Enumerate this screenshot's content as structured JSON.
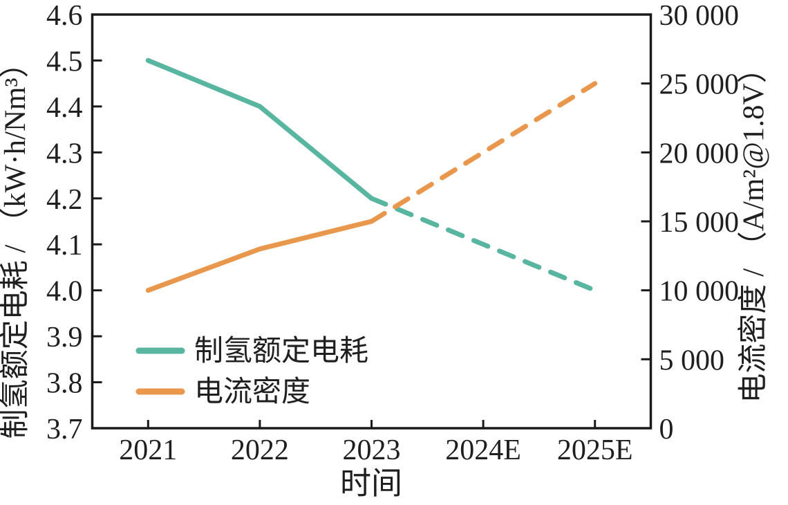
{
  "figure": {
    "background": "#ffffff",
    "text_color": "#1f1f1f"
  },
  "chart_data": {
    "type": "line",
    "title": "",
    "xlabel": "时间",
    "ylabel_left": "制氢额定电耗 / （kW·h/Nm³）",
    "ylabel_right": "电流密度 / （A/m²@1.8V）",
    "categories": [
      "2021",
      "2022",
      "2023",
      "2024E",
      "2025E"
    ],
    "left_axis": {
      "range": [
        3.7,
        4.6
      ],
      "tick_step": 0.1,
      "tick_labels": [
        "4.6",
        "4.5",
        "4.4",
        "4.3",
        "4.2",
        "4.1",
        "4.0",
        "3.9",
        "3.8",
        "3.7"
      ]
    },
    "right_axis": {
      "range": [
        0,
        30000
      ],
      "tick_step": 5000,
      "tick_labels": [
        "30 000",
        "25 000",
        "20 000",
        "15 000",
        "10 000",
        "5 000",
        "0"
      ]
    },
    "grid": false,
    "axis_color": "#1a1a1a",
    "legend": {
      "position": "inside-lower-left"
    },
    "series": [
      {
        "name": "制氢额定电耗",
        "axis": "left",
        "color": "#58b5a0",
        "values": [
          4.5,
          4.4,
          4.2,
          4.1,
          4.0
        ],
        "solid_until_index": 2,
        "dashed_after": true
      },
      {
        "name": "电流密度",
        "axis": "right",
        "color": "#e9974d",
        "values": [
          10000,
          13000,
          15000,
          20000,
          25000
        ],
        "solid_until_index": 2,
        "dashed_after": true
      }
    ]
  }
}
